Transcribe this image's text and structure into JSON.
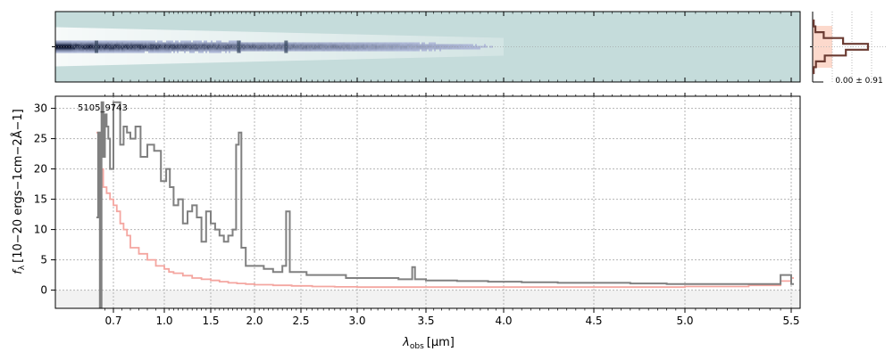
{
  "chart_data": [
    {
      "panel": "2d-spectrum",
      "type": "heatmap",
      "description_colormap": "bone-like, dark = high flux",
      "trace_features_um": [
        0.6,
        1.82,
        2.34
      ],
      "background_color": "#c5dcdb"
    },
    {
      "panel": "profile",
      "type": "line",
      "label": "0.00 ± 0.91",
      "profile_y": [
        0.02,
        0.05,
        0.2,
        0.55,
        1.0,
        0.6,
        0.22,
        0.06,
        0.02
      ],
      "fill_color": "#fcd9cc",
      "line_color": "#6b3b32"
    },
    {
      "panel": "1d-spectrum",
      "type": "line",
      "object_label": "5105_9743",
      "xlabel_main": "λ",
      "xlabel_sub": "obs",
      "xlabel_unit": "[μm]",
      "ylabel_main": "f",
      "ylabel_sub": "λ",
      "ylabel_unit": "[10−20 ergs−1cm−2Å−1]",
      "xscale": "reciprocal-like (stretched blue end)",
      "xticks": [
        "0.7",
        "1.0",
        "1.5",
        "2.0",
        "2.5",
        "3.0",
        "3.5",
        "4.0",
        "4.5",
        "5.0",
        "5.5"
      ],
      "xtick_values": [
        0.7,
        1.0,
        1.5,
        2.0,
        2.5,
        3.0,
        3.5,
        4.0,
        4.5,
        5.0,
        5.5
      ],
      "yticks": [
        "0",
        "5",
        "10",
        "15",
        "20",
        "25",
        "30"
      ],
      "ytick_values": [
        0,
        5,
        10,
        15,
        20,
        25,
        30
      ],
      "ylim": [
        -3,
        32
      ],
      "xlim": [
        0.6,
        5.52
      ],
      "grid": true,
      "series": [
        {
          "color": "#808080",
          "x": [
            0.6,
            0.61,
            0.62,
            0.63,
            0.64,
            0.65,
            0.66,
            0.67,
            0.68,
            0.7,
            0.72,
            0.74,
            0.76,
            0.78,
            0.8,
            0.83,
            0.86,
            0.9,
            0.94,
            0.98,
            1.02,
            1.06,
            1.1,
            1.15,
            1.2,
            1.25,
            1.3,
            1.35,
            1.4,
            1.45,
            1.5,
            1.55,
            1.6,
            1.65,
            1.7,
            1.75,
            1.79,
            1.82,
            1.85,
            1.9,
            2.0,
            2.1,
            2.2,
            2.3,
            2.34,
            2.38,
            2.45,
            2.55,
            2.7,
            2.9,
            3.1,
            3.3,
            3.4,
            3.42,
            3.5,
            3.7,
            3.9,
            4.1,
            4.3,
            4.5,
            4.7,
            4.9,
            5.1,
            5.3,
            5.45,
            5.5
          ],
          "y": [
            12,
            26,
            -3,
            31,
            22,
            29,
            27,
            25,
            20,
            31,
            31,
            24,
            27,
            26,
            25,
            27,
            22,
            24,
            23,
            18,
            20,
            17,
            14,
            15,
            11,
            13,
            14,
            12,
            8,
            13,
            11,
            10,
            9,
            8,
            9,
            10,
            24,
            26,
            7,
            4,
            4,
            3.5,
            3,
            4,
            13,
            3,
            3,
            2.5,
            2.5,
            2,
            2,
            1.8,
            3.8,
            1.8,
            1.6,
            1.5,
            1.4,
            1.3,
            1.2,
            1.2,
            1.1,
            1.0,
            1.0,
            1.0,
            2.5,
            1.0
          ]
        },
        {
          "color": "#f4a6a0",
          "x": [
            0.6,
            0.62,
            0.64,
            0.66,
            0.68,
            0.7,
            0.72,
            0.74,
            0.76,
            0.78,
            0.8,
            0.85,
            0.9,
            0.95,
            1.0,
            1.05,
            1.1,
            1.2,
            1.3,
            1.4,
            1.5,
            1.6,
            1.7,
            1.8,
            1.9,
            2.0,
            2.2,
            2.4,
            2.6,
            2.8,
            3.0,
            3.5,
            4.0,
            4.5,
            5.0,
            5.3,
            5.45,
            5.5
          ],
          "y": [
            26,
            20,
            17,
            16,
            15,
            14,
            13,
            11,
            10,
            9,
            7,
            6,
            5,
            4,
            3.5,
            3,
            2.8,
            2.4,
            2,
            1.8,
            1.6,
            1.4,
            1.2,
            1.1,
            1.0,
            0.9,
            0.8,
            0.7,
            0.6,
            0.55,
            0.5,
            0.5,
            0.5,
            0.5,
            0.6,
            0.8,
            1.5,
            2.0
          ]
        }
      ]
    }
  ]
}
